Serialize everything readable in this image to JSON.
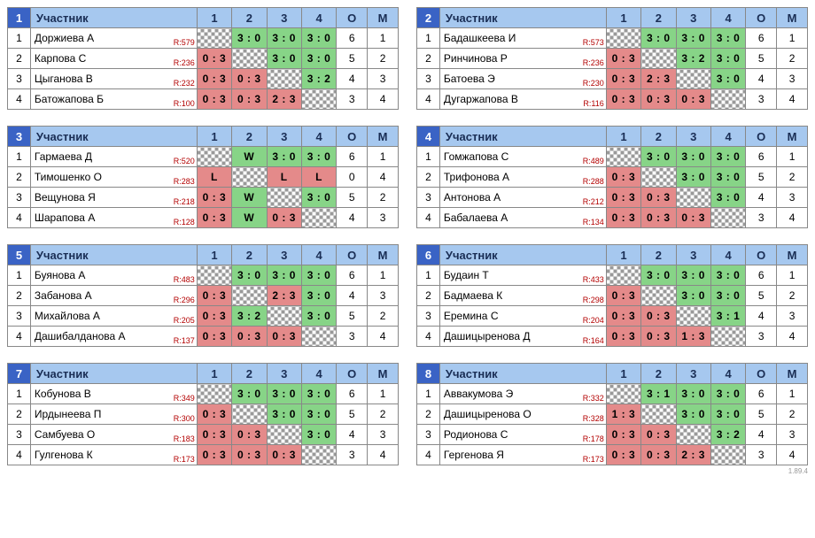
{
  "header": {
    "participant_label": "Участник",
    "o_label": "О",
    "m_label": "М"
  },
  "version": "1.89.4",
  "groups": [
    {
      "num": "1",
      "players": [
        {
          "name": "Доржиева А",
          "rating": "R:579",
          "scores": [
            null,
            {
              "t": "3 : 0",
              "r": "w"
            },
            {
              "t": "3 : 0",
              "r": "w"
            },
            {
              "t": "3 : 0",
              "r": "w"
            }
          ],
          "o": "6",
          "m": "1"
        },
        {
          "name": "Карпова С",
          "rating": "R:236",
          "scores": [
            {
              "t": "0 : 3",
              "r": "l"
            },
            null,
            {
              "t": "3 : 0",
              "r": "w"
            },
            {
              "t": "3 : 0",
              "r": "w"
            }
          ],
          "o": "5",
          "m": "2"
        },
        {
          "name": "Цыганова В",
          "rating": "R:232",
          "scores": [
            {
              "t": "0 : 3",
              "r": "l"
            },
            {
              "t": "0 : 3",
              "r": "l"
            },
            null,
            {
              "t": "3 : 2",
              "r": "w"
            }
          ],
          "o": "4",
          "m": "3"
        },
        {
          "name": "Батожапова Б",
          "rating": "R:100",
          "scores": [
            {
              "t": "0 : 3",
              "r": "l"
            },
            {
              "t": "0 : 3",
              "r": "l"
            },
            {
              "t": "2 : 3",
              "r": "l"
            },
            null
          ],
          "o": "3",
          "m": "4"
        }
      ]
    },
    {
      "num": "2",
      "players": [
        {
          "name": "Бадашкеева И",
          "rating": "R:573",
          "scores": [
            null,
            {
              "t": "3 : 0",
              "r": "w"
            },
            {
              "t": "3 : 0",
              "r": "w"
            },
            {
              "t": "3 : 0",
              "r": "w"
            }
          ],
          "o": "6",
          "m": "1"
        },
        {
          "name": "Ринчинова Р",
          "rating": "R:236",
          "scores": [
            {
              "t": "0 : 3",
              "r": "l"
            },
            null,
            {
              "t": "3 : 2",
              "r": "w"
            },
            {
              "t": "3 : 0",
              "r": "w"
            }
          ],
          "o": "5",
          "m": "2"
        },
        {
          "name": "Батоева Э",
          "rating": "R:230",
          "scores": [
            {
              "t": "0 : 3",
              "r": "l"
            },
            {
              "t": "2 : 3",
              "r": "l"
            },
            null,
            {
              "t": "3 : 0",
              "r": "w"
            }
          ],
          "o": "4",
          "m": "3"
        },
        {
          "name": "Дугаржапова В",
          "rating": "R:116",
          "scores": [
            {
              "t": "0 : 3",
              "r": "l"
            },
            {
              "t": "0 : 3",
              "r": "l"
            },
            {
              "t": "0 : 3",
              "r": "l"
            },
            null
          ],
          "o": "3",
          "m": "4"
        }
      ]
    },
    {
      "num": "3",
      "players": [
        {
          "name": "Гармаева Д",
          "rating": "R:520",
          "scores": [
            null,
            {
              "t": "W",
              "r": "w"
            },
            {
              "t": "3 : 0",
              "r": "w"
            },
            {
              "t": "3 : 0",
              "r": "w"
            }
          ],
          "o": "6",
          "m": "1"
        },
        {
          "name": "Тимошенко О",
          "rating": "R:283",
          "scores": [
            {
              "t": "L",
              "r": "l"
            },
            null,
            {
              "t": "L",
              "r": "l"
            },
            {
              "t": "L",
              "r": "l"
            }
          ],
          "o": "0",
          "m": "4"
        },
        {
          "name": "Вещунова Я",
          "rating": "R:218",
          "scores": [
            {
              "t": "0 : 3",
              "r": "l"
            },
            {
              "t": "W",
              "r": "w"
            },
            null,
            {
              "t": "3 : 0",
              "r": "w"
            }
          ],
          "o": "5",
          "m": "2"
        },
        {
          "name": "Шарапова А",
          "rating": "R:128",
          "scores": [
            {
              "t": "0 : 3",
              "r": "l"
            },
            {
              "t": "W",
              "r": "w"
            },
            {
              "t": "0 : 3",
              "r": "l"
            },
            null
          ],
          "o": "4",
          "m": "3"
        }
      ]
    },
    {
      "num": "4",
      "players": [
        {
          "name": "Гомжапова С",
          "rating": "R:489",
          "scores": [
            null,
            {
              "t": "3 : 0",
              "r": "w"
            },
            {
              "t": "3 : 0",
              "r": "w"
            },
            {
              "t": "3 : 0",
              "r": "w"
            }
          ],
          "o": "6",
          "m": "1"
        },
        {
          "name": "Трифонова А",
          "rating": "R:288",
          "scores": [
            {
              "t": "0 : 3",
              "r": "l"
            },
            null,
            {
              "t": "3 : 0",
              "r": "w"
            },
            {
              "t": "3 : 0",
              "r": "w"
            }
          ],
          "o": "5",
          "m": "2"
        },
        {
          "name": "Антонова А",
          "rating": "R:212",
          "scores": [
            {
              "t": "0 : 3",
              "r": "l"
            },
            {
              "t": "0 : 3",
              "r": "l"
            },
            null,
            {
              "t": "3 : 0",
              "r": "w"
            }
          ],
          "o": "4",
          "m": "3"
        },
        {
          "name": "Бабалаева А",
          "rating": "R:134",
          "scores": [
            {
              "t": "0 : 3",
              "r": "l"
            },
            {
              "t": "0 : 3",
              "r": "l"
            },
            {
              "t": "0 : 3",
              "r": "l"
            },
            null
          ],
          "o": "3",
          "m": "4"
        }
      ]
    },
    {
      "num": "5",
      "players": [
        {
          "name": "Буянова А",
          "rating": "R:483",
          "scores": [
            null,
            {
              "t": "3 : 0",
              "r": "w"
            },
            {
              "t": "3 : 0",
              "r": "w"
            },
            {
              "t": "3 : 0",
              "r": "w"
            }
          ],
          "o": "6",
          "m": "1"
        },
        {
          "name": "Забанова А",
          "rating": "R:296",
          "scores": [
            {
              "t": "0 : 3",
              "r": "l"
            },
            null,
            {
              "t": "2 : 3",
              "r": "l"
            },
            {
              "t": "3 : 0",
              "r": "w"
            }
          ],
          "o": "4",
          "m": "3"
        },
        {
          "name": "Михайлова А",
          "rating": "R:205",
          "scores": [
            {
              "t": "0 : 3",
              "r": "l"
            },
            {
              "t": "3 : 2",
              "r": "w"
            },
            null,
            {
              "t": "3 : 0",
              "r": "w"
            }
          ],
          "o": "5",
          "m": "2"
        },
        {
          "name": "Дашибалданова А",
          "rating": "R:137",
          "scores": [
            {
              "t": "0 : 3",
              "r": "l"
            },
            {
              "t": "0 : 3",
              "r": "l"
            },
            {
              "t": "0 : 3",
              "r": "l"
            },
            null
          ],
          "o": "3",
          "m": "4"
        }
      ]
    },
    {
      "num": "6",
      "players": [
        {
          "name": "Будаин Т",
          "rating": "R:433",
          "scores": [
            null,
            {
              "t": "3 : 0",
              "r": "w"
            },
            {
              "t": "3 : 0",
              "r": "w"
            },
            {
              "t": "3 : 0",
              "r": "w"
            }
          ],
          "o": "6",
          "m": "1"
        },
        {
          "name": "Бадмаева К",
          "rating": "R:298",
          "scores": [
            {
              "t": "0 : 3",
              "r": "l"
            },
            null,
            {
              "t": "3 : 0",
              "r": "w"
            },
            {
              "t": "3 : 0",
              "r": "w"
            }
          ],
          "o": "5",
          "m": "2"
        },
        {
          "name": "Еремина С",
          "rating": "R:204",
          "scores": [
            {
              "t": "0 : 3",
              "r": "l"
            },
            {
              "t": "0 : 3",
              "r": "l"
            },
            null,
            {
              "t": "3 : 1",
              "r": "w"
            }
          ],
          "o": "4",
          "m": "3"
        },
        {
          "name": "Дашицыренова Д",
          "rating": "R:164",
          "scores": [
            {
              "t": "0 : 3",
              "r": "l"
            },
            {
              "t": "0 : 3",
              "r": "l"
            },
            {
              "t": "1 : 3",
              "r": "l"
            },
            null
          ],
          "o": "3",
          "m": "4"
        }
      ]
    },
    {
      "num": "7",
      "players": [
        {
          "name": "Кобунова В",
          "rating": "R:349",
          "scores": [
            null,
            {
              "t": "3 : 0",
              "r": "w"
            },
            {
              "t": "3 : 0",
              "r": "w"
            },
            {
              "t": "3 : 0",
              "r": "w"
            }
          ],
          "o": "6",
          "m": "1"
        },
        {
          "name": "Ирдынеева П",
          "rating": "R:300",
          "scores": [
            {
              "t": "0 : 3",
              "r": "l"
            },
            null,
            {
              "t": "3 : 0",
              "r": "w"
            },
            {
              "t": "3 : 0",
              "r": "w"
            }
          ],
          "o": "5",
          "m": "2"
        },
        {
          "name": "Самбуева О",
          "rating": "R:183",
          "scores": [
            {
              "t": "0 : 3",
              "r": "l"
            },
            {
              "t": "0 : 3",
              "r": "l"
            },
            null,
            {
              "t": "3 : 0",
              "r": "w"
            }
          ],
          "o": "4",
          "m": "3"
        },
        {
          "name": "Гулгенова К",
          "rating": "R:173",
          "scores": [
            {
              "t": "0 : 3",
              "r": "l"
            },
            {
              "t": "0 : 3",
              "r": "l"
            },
            {
              "t": "0 : 3",
              "r": "l"
            },
            null
          ],
          "o": "3",
          "m": "4"
        }
      ]
    },
    {
      "num": "8",
      "players": [
        {
          "name": "Аввакумова Э",
          "rating": "R:332",
          "scores": [
            null,
            {
              "t": "3 : 1",
              "r": "w"
            },
            {
              "t": "3 : 0",
              "r": "w"
            },
            {
              "t": "3 : 0",
              "r": "w"
            }
          ],
          "o": "6",
          "m": "1"
        },
        {
          "name": "Дашицыренова О",
          "rating": "R:328",
          "scores": [
            {
              "t": "1 : 3",
              "r": "l"
            },
            null,
            {
              "t": "3 : 0",
              "r": "w"
            },
            {
              "t": "3 : 0",
              "r": "w"
            }
          ],
          "o": "5",
          "m": "2"
        },
        {
          "name": "Родионова С",
          "rating": "R:178",
          "scores": [
            {
              "t": "0 : 3",
              "r": "l"
            },
            {
              "t": "0 : 3",
              "r": "l"
            },
            null,
            {
              "t": "3 : 2",
              "r": "w"
            }
          ],
          "o": "4",
          "m": "3"
        },
        {
          "name": "Гергенова Я",
          "rating": "R:173",
          "scores": [
            {
              "t": "0 : 3",
              "r": "l"
            },
            {
              "t": "0 : 3",
              "r": "l"
            },
            {
              "t": "2 : 3",
              "r": "l"
            },
            null
          ],
          "o": "3",
          "m": "4"
        }
      ]
    }
  ]
}
